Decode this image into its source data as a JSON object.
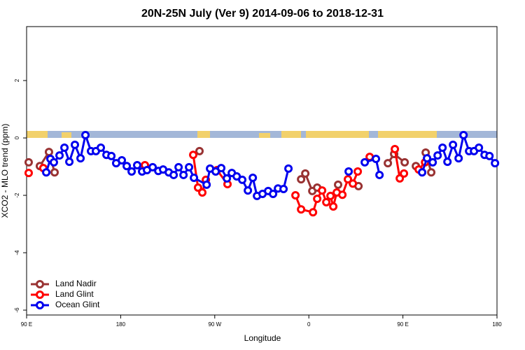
{
  "chart_data": {
    "type": "line",
    "title": "20N-25N July (Ver 9)   2014-09-06 to 2018-12-31",
    "x_label": "Longitude",
    "y_label": "XCO2 - MLO trend (ppm)",
    "xlim": [
      90,
      540
    ],
    "ylim": [
      -6.17,
      3.88
    ],
    "xticks": [
      {
        "value": 90,
        "label": "90 E"
      },
      180,
      {
        "value": 270,
        "label": "90 W"
      },
      {
        "value": 360,
        "label": "0"
      },
      {
        "value": 450,
        "label": "90 E"
      },
      {
        "value": 540,
        "label": "180"
      }
    ],
    "yticks": [
      -6,
      -4,
      -2,
      0,
      2
    ],
    "legend": "bottomleft",
    "series": [
      {
        "name": "Land Nadir",
        "color": "#993333",
        "x": [
          92,
          null,
          102.7,
          111.4,
          116.8,
          null,
          255.4,
          null,
          352.6,
          356.6,
          363.3,
          368,
          null,
          388,
          null,
          407.5,
          null,
          435.6,
          441.6,
          451.7,
          null,
          462.4,
          null,
          471.8,
          477.1
        ],
        "values": [
          -0.85,
          null,
          -0.98,
          -0.49,
          -1.2,
          null,
          -0.46,
          null,
          -1.44,
          -1.24,
          -1.85,
          -1.73,
          null,
          -1.63,
          null,
          -1.68,
          null,
          -0.88,
          -0.56,
          -0.85,
          null,
          -0.98,
          null,
          -0.51,
          -1.2
        ]
      },
      {
        "name": "Land Glint",
        "color": "#ff0000",
        "x": [
          92,
          null,
          106,
          null,
          203.2,
          null,
          249.4,
          254,
          258.1,
          261.5,
          null,
          272.2,
          282.2,
          null,
          347.2,
          352.6,
          364,
          368,
          372.7,
          376.7,
          380.7,
          383.4,
          386.7,
          392.1,
          397.4,
          402.1,
          406.8,
          null,
          418.2,
          null,
          442.3,
          447,
          451,
          null,
          465.1,
          471.2
        ],
        "values": [
          -1.22,
          null,
          -1.05,
          null,
          -0.95,
          null,
          -0.59,
          -1.73,
          -1.9,
          -1.46,
          null,
          -1.12,
          -1.61,
          null,
          -2.0,
          -2.49,
          -2.59,
          -2.12,
          -1.83,
          -2.24,
          -2.02,
          -2.39,
          -1.9,
          -1.98,
          -1.44,
          -1.59,
          -1.17,
          null,
          -0.66,
          null,
          -0.39,
          -1.41,
          -1.24,
          null,
          -1.1,
          -0.85
        ]
      },
      {
        "name": "Ocean Glint",
        "color": "#0000ee",
        "x": [
          108.8,
          112.8,
          116.1,
          121.5,
          126.2,
          130.9,
          136.2,
          141.6,
          146.3,
          151.6,
          156.3,
          161,
          166.4,
          171.1,
          175.7,
          181.1,
          185.8,
          190.5,
          195.8,
          200.5,
          205.2,
          210.6,
          216,
          220.6,
          226,
          230.7,
          235.4,
          240.1,
          245.4,
          250.1,
          262.2,
          265.5,
          270.9,
          276.2,
          281.6,
          286.3,
          291,
          296.3,
          301.7,
          306.4,
          310.4,
          315.7,
          321.1,
          325.8,
          330.5,
          335.8,
          340.5,
          null,
          398.1,
          null,
          413.5,
          424.2,
          427.6,
          null,
          468.4,
          473.1,
          478.5,
          483.2,
          487.9,
          492.6,
          497.9,
          503.3,
          508,
          513.3,
          518,
          522.7,
          528.1,
          532.8,
          538.1
        ],
        "values": [
          -1.2,
          -0.73,
          -0.85,
          -0.61,
          -0.34,
          -0.83,
          -0.24,
          -0.71,
          0.1,
          -0.46,
          -0.46,
          -0.34,
          -0.59,
          -0.63,
          -0.88,
          -0.78,
          -0.98,
          -1.17,
          -0.95,
          -1.17,
          -1.12,
          -1.02,
          -1.15,
          -1.1,
          -1.2,
          -1.29,
          -1.02,
          -1.29,
          -1.02,
          -1.39,
          -1.63,
          -1.07,
          -1.17,
          -1.05,
          -1.41,
          -1.22,
          -1.34,
          -1.46,
          -1.83,
          -1.39,
          -2.02,
          -1.95,
          -1.85,
          -1.95,
          -1.76,
          -1.78,
          -1.07,
          null,
          -1.17,
          null,
          -0.85,
          -0.73,
          -1.29,
          null,
          -1.2,
          -0.71,
          -0.85,
          -0.61,
          -0.34,
          -0.83,
          -0.24,
          -0.71,
          0.1,
          -0.46,
          -0.46,
          -0.34,
          -0.59,
          -0.63,
          -0.88
        ]
      }
    ]
  }
}
